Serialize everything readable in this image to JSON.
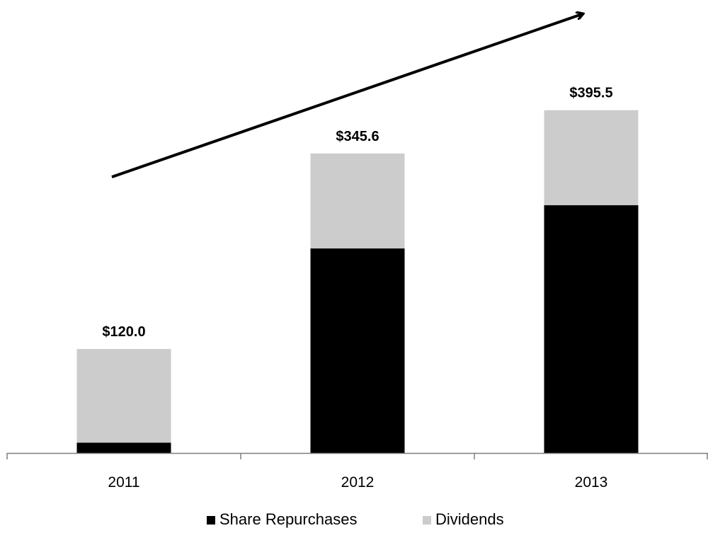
{
  "chart_data": {
    "type": "bar",
    "stacked": true,
    "categories": [
      "2011",
      "2012",
      "2013"
    ],
    "series": [
      {
        "name": "Share Repurchases",
        "values": [
          12.0,
          236.0,
          286.0
        ],
        "color": "#000000"
      },
      {
        "name": "Dividends",
        "values": [
          108.0,
          109.6,
          109.5
        ],
        "color": "#cccccc"
      }
    ],
    "totals": [
      120.0,
      345.6,
      395.5
    ],
    "total_labels": [
      "$120.0",
      "$345.6",
      "$395.5"
    ],
    "ylim": [
      0,
      490
    ],
    "grid": false,
    "legend": {
      "position": "bottom",
      "items": [
        {
          "label": "Share Repurchases",
          "color": "#000000"
        },
        {
          "label": "Dividends",
          "color": "#cccccc"
        }
      ]
    },
    "annotations": [
      {
        "type": "arrow",
        "description": "upward trend arrow",
        "color": "#000000"
      }
    ]
  }
}
